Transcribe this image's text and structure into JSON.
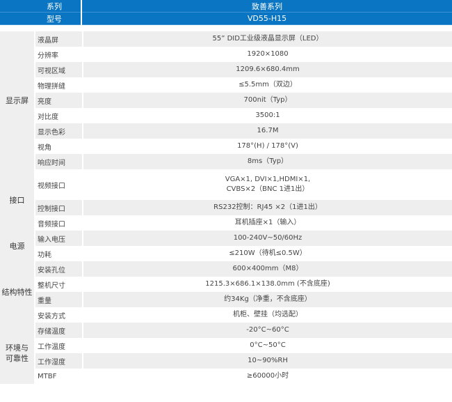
{
  "header": {
    "series_label": "系列",
    "series_value": "致善系列",
    "model_label": "型号",
    "model_value": "VD55-H15"
  },
  "colors": {
    "header_bg": "#0a75c2",
    "row_alt": "#eeeeee"
  },
  "groups": [
    {
      "name": "显示屏",
      "rows": [
        {
          "label": "液晶屏",
          "value": "55” DID工业级液晶显示屏（LED）"
        },
        {
          "label": "分辨率",
          "value": "1920×1080"
        },
        {
          "label": "可视区域",
          "value": "1209.6×680.4mm"
        },
        {
          "label": "物理拼缝",
          "value": "≤5.5mm（双边）"
        },
        {
          "label": "亮度",
          "value": "700nit（Typ）"
        },
        {
          "label": "对比度",
          "value": "3500:1"
        },
        {
          "label": "显示色彩",
          "value": "16.7M"
        },
        {
          "label": "视角",
          "value": "178°(H) / 178°(V)"
        },
        {
          "label": "响应时间",
          "value": "8ms（Typ）"
        }
      ]
    },
    {
      "name": "接口",
      "rows": [
        {
          "label": "视频接口",
          "value": "VGA×1, DVI×1,HDMI×1,",
          "value2": "CVBS×2（BNC 1进1出）"
        },
        {
          "label": "控制接口",
          "value": "RS232控制：RJ45 ×2（1进1出）"
        },
        {
          "label": "音频接口",
          "value": "耳机插座×1（输入）"
        }
      ]
    },
    {
      "name": "电源",
      "rows": [
        {
          "label": "输入电压",
          "value": "100-240V~50/60Hz"
        },
        {
          "label": "功耗",
          "value": "≤210W（待机≤0.5W）"
        }
      ]
    },
    {
      "name": "结构特性",
      "rows": [
        {
          "label": "安装孔位",
          "value": "600×400mm（M8）"
        },
        {
          "label": "整机尺寸",
          "value": "1215.3×686.1×138.0mm (不含底座)"
        },
        {
          "label": "重量",
          "value": "约34Kg（净重，不含底座）"
        },
        {
          "label": "安装方式",
          "value": "机柜、壁挂（均选配）"
        }
      ]
    },
    {
      "name": "环境与可靠性",
      "name_line1": "环境与",
      "name_line2": "可靠性",
      "rows": [
        {
          "label": "存储温度",
          "value": "-20°C~60°C"
        },
        {
          "label": "工作温度",
          "value": "0°C~50°C"
        },
        {
          "label": "工作湿度",
          "value": "10~90%RH"
        },
        {
          "label": "MTBF",
          "value": "≥60000小时"
        }
      ]
    }
  ]
}
